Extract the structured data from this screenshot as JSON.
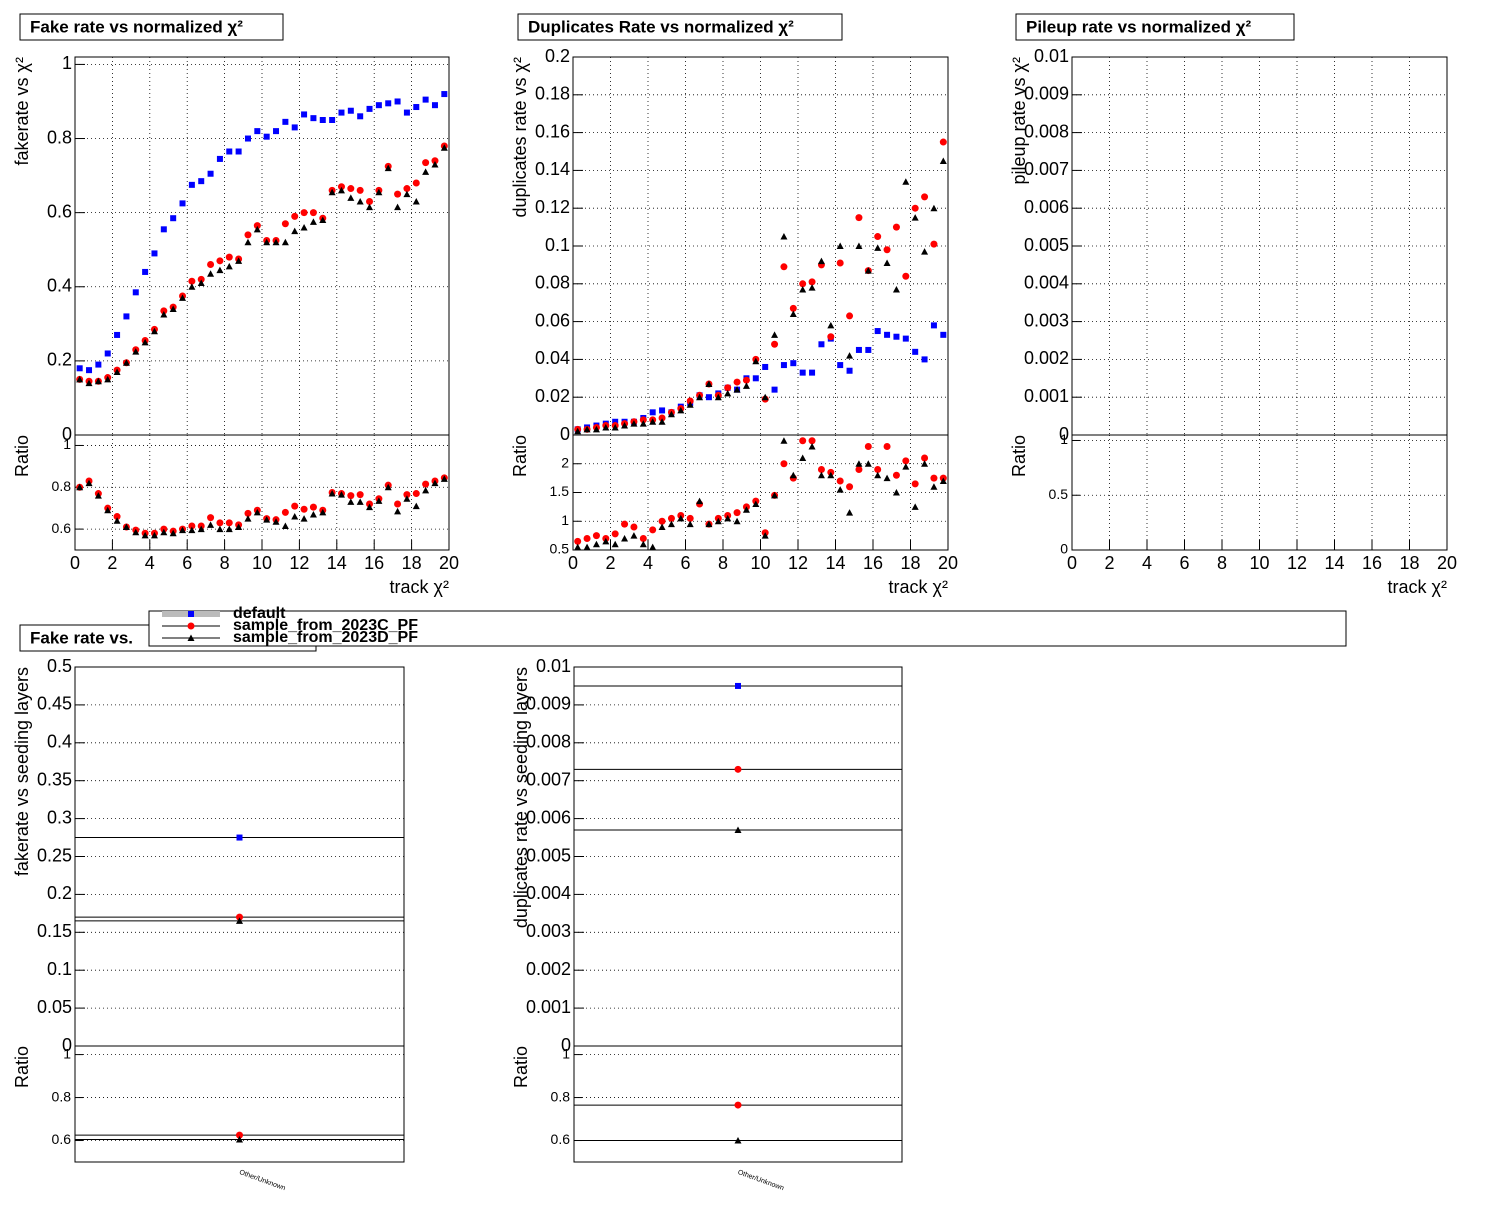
{
  "chart_data": [
    {
      "type": "errorbar",
      "title": "Fake rate vs normalized χ²",
      "ylabel": "fakerate vs χ²",
      "xlabel": "track χ²",
      "ratio_label": "Ratio",
      "xlim": [
        0,
        20
      ],
      "xticks": [
        0,
        2,
        4,
        6,
        8,
        10,
        12,
        14,
        16,
        18,
        20
      ],
      "ylim": [
        0,
        1.02
      ],
      "yticks": [
        0,
        0.2,
        0.4,
        0.6,
        0.8,
        1
      ],
      "ratio_ylim": [
        0.5,
        1.05
      ],
      "ratio_yticks": [
        0.6,
        0.8,
        1
      ],
      "grid": true,
      "x": [
        0.25,
        0.75,
        1.25,
        1.75,
        2.25,
        2.75,
        3.25,
        3.75,
        4.25,
        4.75,
        5.25,
        5.75,
        6.25,
        6.75,
        7.25,
        7.75,
        8.25,
        8.75,
        9.25,
        9.75,
        10.25,
        10.75,
        11.25,
        11.75,
        12.25,
        12.75,
        13.25,
        13.75,
        14.25,
        14.75,
        15.25,
        15.75,
        16.25,
        16.75,
        17.25,
        17.75,
        18.25,
        18.75,
        19.25,
        19.75
      ],
      "series": [
        {
          "name": "default",
          "color": "#0000ff",
          "marker": "square",
          "values": [
            0.18,
            0.175,
            0.19,
            0.22,
            0.27,
            0.32,
            0.385,
            0.44,
            0.49,
            0.555,
            0.585,
            0.625,
            0.675,
            0.685,
            0.705,
            0.745,
            0.765,
            0.765,
            0.8,
            0.82,
            0.805,
            0.82,
            0.845,
            0.83,
            0.865,
            0.855,
            0.85,
            0.85,
            0.87,
            0.875,
            0.86,
            0.88,
            0.89,
            0.895,
            0.9,
            0.87,
            0.885,
            0.905,
            0.89,
            0.92
          ]
        },
        {
          "name": "sample_from_2023C_PF",
          "color": "#ff0000",
          "marker": "circle",
          "values": [
            0.15,
            0.145,
            0.145,
            0.155,
            0.175,
            0.195,
            0.23,
            0.255,
            0.285,
            0.335,
            0.345,
            0.375,
            0.415,
            0.42,
            0.46,
            0.47,
            0.48,
            0.475,
            0.54,
            0.565,
            0.525,
            0.525,
            0.57,
            0.59,
            0.6,
            0.6,
            0.585,
            0.66,
            0.67,
            0.665,
            0.66,
            0.63,
            0.66,
            0.725,
            0.65,
            0.665,
            0.68,
            0.735,
            0.74,
            0.78
          ],
          "ratio_values": [
            0.8,
            0.83,
            0.77,
            0.7,
            0.66,
            0.61,
            0.595,
            0.58,
            0.58,
            0.6,
            0.59,
            0.6,
            0.615,
            0.615,
            0.655,
            0.63,
            0.63,
            0.62,
            0.675,
            0.69,
            0.65,
            0.645,
            0.68,
            0.71,
            0.695,
            0.705,
            0.69,
            0.775,
            0.77,
            0.76,
            0.765,
            0.72,
            0.745,
            0.81,
            0.72,
            0.765,
            0.77,
            0.815,
            0.83,
            0.845
          ]
        },
        {
          "name": "sample_from_2023D_PF",
          "color": "#000000",
          "marker": "triangle",
          "values": [
            0.15,
            0.14,
            0.145,
            0.15,
            0.17,
            0.195,
            0.225,
            0.25,
            0.28,
            0.325,
            0.34,
            0.37,
            0.4,
            0.41,
            0.435,
            0.445,
            0.455,
            0.47,
            0.52,
            0.555,
            0.52,
            0.52,
            0.52,
            0.55,
            0.56,
            0.575,
            0.58,
            0.655,
            0.66,
            0.64,
            0.63,
            0.615,
            0.655,
            0.72,
            0.615,
            0.65,
            0.63,
            0.71,
            0.73,
            0.775
          ],
          "ratio_values": [
            0.8,
            0.82,
            0.76,
            0.69,
            0.64,
            0.61,
            0.585,
            0.57,
            0.57,
            0.585,
            0.58,
            0.595,
            0.595,
            0.6,
            0.62,
            0.6,
            0.6,
            0.61,
            0.65,
            0.68,
            0.645,
            0.635,
            0.615,
            0.66,
            0.65,
            0.67,
            0.68,
            0.77,
            0.765,
            0.73,
            0.73,
            0.705,
            0.735,
            0.8,
            0.685,
            0.745,
            0.71,
            0.785,
            0.82,
            0.84
          ]
        }
      ]
    },
    {
      "type": "errorbar",
      "title": "Duplicates Rate vs normalized χ²",
      "ylabel": "duplicates rate vs χ²",
      "xlabel": "track χ²",
      "ratio_label": "Ratio",
      "xlim": [
        0,
        20
      ],
      "xticks": [
        0,
        2,
        4,
        6,
        8,
        10,
        12,
        14,
        16,
        18,
        20
      ],
      "ylim": [
        0,
        0.2
      ],
      "yticks": [
        0,
        0.02,
        0.04,
        0.06,
        0.08,
        0.1,
        0.12,
        0.14,
        0.16,
        0.18,
        0.2
      ],
      "ratio_ylim": [
        0.5,
        2.5
      ],
      "ratio_yticks": [
        0.5,
        1,
        1.5,
        2
      ],
      "grid": true,
      "x": [
        0.25,
        0.75,
        1.25,
        1.75,
        2.25,
        2.75,
        3.25,
        3.75,
        4.25,
        4.75,
        5.25,
        5.75,
        6.25,
        6.75,
        7.25,
        7.75,
        8.25,
        8.75,
        9.25,
        9.75,
        10.25,
        10.75,
        11.25,
        11.75,
        12.25,
        12.75,
        13.25,
        13.75,
        14.25,
        14.75,
        15.25,
        15.75,
        16.25,
        16.75,
        17.25,
        17.75,
        18.25,
        18.75,
        19.25,
        19.75
      ],
      "series": [
        {
          "color": "#0000ff",
          "marker": "square",
          "values": [
            0.003,
            0.004,
            0.005,
            0.006,
            0.007,
            0.007,
            0.007,
            0.009,
            0.012,
            0.013,
            0.012,
            0.015,
            0.017,
            0.021,
            0.02,
            0.022,
            0.025,
            0.024,
            0.03,
            0.03,
            0.036,
            0.024,
            0.037,
            0.038,
            0.033,
            0.033,
            0.048,
            0.051,
            0.037,
            0.034,
            0.045,
            0.045,
            0.055,
            0.053,
            0.052,
            0.051,
            0.044,
            0.04,
            0.058,
            0.053
          ]
        },
        {
          "color": "#ff0000",
          "marker": "circle",
          "values": [
            0.003,
            0.003,
            0.004,
            0.005,
            0.005,
            0.006,
            0.007,
            0.008,
            0.008,
            0.009,
            0.012,
            0.014,
            0.018,
            0.021,
            0.027,
            0.021,
            0.025,
            0.028,
            0.029,
            0.04,
            0.019,
            0.048,
            0.089,
            0.067,
            0.08,
            0.081,
            0.09,
            0.052,
            0.091,
            0.063,
            0.115,
            0.087,
            0.105,
            0.098,
            0.11,
            0.084,
            0.12,
            0.126,
            0.101,
            0.155
          ],
          "ratio_values": [
            0.65,
            0.7,
            0.75,
            0.7,
            0.78,
            0.95,
            0.9,
            0.7,
            0.85,
            1.0,
            1.05,
            1.1,
            1.05,
            1.3,
            0.95,
            1.05,
            1.1,
            1.15,
            1.25,
            1.35,
            0.8,
            1.45,
            2.0,
            1.75,
            2.4,
            2.4,
            1.9,
            1.85,
            1.7,
            1.6,
            1.9,
            2.3,
            1.9,
            2.3,
            1.8,
            2.05,
            1.65,
            2.1,
            1.75,
            1.75
          ]
        },
        {
          "color": "#000000",
          "marker": "triangle",
          "values": [
            0.002,
            0.003,
            0.003,
            0.004,
            0.004,
            0.005,
            0.006,
            0.006,
            0.007,
            0.007,
            0.011,
            0.013,
            0.016,
            0.02,
            0.027,
            0.02,
            0.022,
            0.024,
            0.026,
            0.039,
            0.02,
            0.053,
            0.105,
            0.064,
            0.077,
            0.078,
            0.092,
            0.058,
            0.1,
            0.042,
            0.1,
            0.087,
            0.099,
            0.091,
            0.077,
            0.134,
            0.115,
            0.097,
            0.12,
            0.145
          ],
          "ratio_values": [
            0.55,
            0.55,
            0.6,
            0.65,
            0.6,
            0.7,
            0.75,
            0.6,
            0.55,
            0.9,
            0.95,
            1.05,
            0.95,
            1.35,
            0.95,
            1.0,
            1.05,
            1.0,
            1.2,
            1.3,
            0.75,
            1.45,
            2.4,
            1.8,
            2.1,
            2.3,
            1.8,
            1.8,
            1.55,
            1.15,
            2.0,
            2.0,
            1.8,
            1.75,
            1.5,
            1.95,
            1.25,
            2.0,
            1.6,
            1.7
          ]
        }
      ]
    },
    {
      "type": "errorbar",
      "title": "Pileup rate vs normalized χ²",
      "ylabel": "pileup rate vs χ²",
      "xlabel": "track χ²",
      "ratio_label": "Ratio",
      "xlim": [
        0,
        20
      ],
      "xticks": [
        0,
        2,
        4,
        6,
        8,
        10,
        12,
        14,
        16,
        18,
        20
      ],
      "ylim": [
        0,
        0.01
      ],
      "yticks": [
        0,
        0.001,
        0.002,
        0.003,
        0.004,
        0.005,
        0.006,
        0.007,
        0.008,
        0.009,
        0.01
      ],
      "ratio_ylim": [
        0,
        1.05
      ],
      "ratio_yticks": [
        0,
        0.5,
        1
      ],
      "grid": true,
      "series": []
    },
    {
      "type": "category",
      "title": "Fake rate vs.",
      "ylabel": "fakerate vs seeding layers",
      "ratio_label": "Ratio",
      "categories": [
        "Other/Unknown"
      ],
      "ylim": [
        0,
        0.5
      ],
      "yticks": [
        0,
        0.05,
        0.1,
        0.15,
        0.2,
        0.25,
        0.3,
        0.35,
        0.4,
        0.45,
        0.5
      ],
      "ratio_ylim": [
        0.5,
        1.04
      ],
      "ratio_yticks": [
        0.6,
        0.8,
        1
      ],
      "grid": true,
      "series": [
        {
          "color": "#0000ff",
          "marker": "square",
          "values": [
            0.275
          ]
        },
        {
          "color": "#ff0000",
          "marker": "circle",
          "values": [
            0.17
          ],
          "ratio_values": [
            0.625
          ]
        },
        {
          "color": "#000000",
          "marker": "triangle",
          "values": [
            0.165
          ],
          "ratio_values": [
            0.605
          ]
        }
      ]
    },
    {
      "type": "category",
      "ylabel": "duplicates rate vs seeding layers",
      "ratio_label": "Ratio",
      "categories": [
        "Other/Unknown"
      ],
      "ylim": [
        0,
        0.01
      ],
      "yticks": [
        0,
        0.001,
        0.002,
        0.003,
        0.004,
        0.005,
        0.006,
        0.007,
        0.008,
        0.009,
        0.01
      ],
      "ratio_ylim": [
        0.5,
        1.04
      ],
      "ratio_yticks": [
        0.6,
        0.8,
        1
      ],
      "grid": true,
      "series": [
        {
          "color": "#0000ff",
          "marker": "square",
          "values": [
            0.0095
          ]
        },
        {
          "color": "#ff0000",
          "marker": "circle",
          "values": [
            0.0073
          ],
          "ratio_values": [
            0.765
          ]
        },
        {
          "color": "#000000",
          "marker": "triangle",
          "values": [
            0.0057
          ],
          "ratio_values": [
            0.6
          ]
        }
      ]
    }
  ]
}
